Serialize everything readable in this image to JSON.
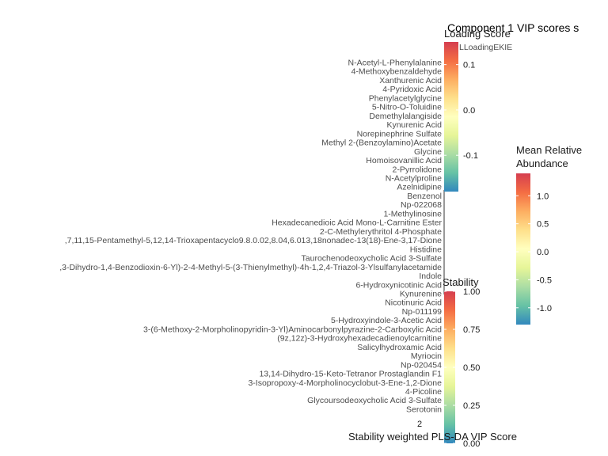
{
  "chart_data": {
    "type": "bar",
    "title": "Component 1 VIP scores s",
    "xlabel": "Stability weighted PLS-DA VIP Score",
    "x_tick_labels": [
      "2"
    ],
    "categories": [
      "N-Acetyl-L-Phenylalanine",
      "4-Methoxybenzaldehyde",
      "Xanthurenic Acid",
      "4-Pyridoxic Acid",
      "Phenylacetylglycine",
      "5-Nitro-O-Toluidine",
      "Demethylalangiside",
      "Kynurenic Acid",
      "Norepinephrine Sulfate",
      "Methyl 2-(Benzoylamino)Acetate",
      "Glycine",
      "Homoisovanillic Acid",
      "2-Pyrrolidone",
      "N-Acetylproline",
      "Azelnidipine",
      "Benzenol",
      "Np-022068",
      "1-Methylinosine",
      "Hexadecanedioic Acid Mono-L-Carnitine Ester",
      "2-C-Methylerythritol 4-Phosphate",
      ",7,11,15-Pentamethyl-5,12,14-Trioxapentacyclo9.8.0.02,8.04,6.013,18nonadec-13(18)-Ene-3,17-Dione",
      "Histidine",
      "Taurochenodeoxycholic Acid 3-Sulfate",
      ",3-Dihydro-1,4-Benzodioxin-6-Yl)-2-4-Methyl-5-(3-Thienylmethyl)-4h-1,2,4-Triazol-3-Ylsulfanylacetamide",
      "Indole",
      "6-Hydroxynicotinic Acid",
      "Kynurenine",
      "Nicotinuric Acid",
      "Np-011199",
      "5-Hydroxyindole-3-Acetic Acid",
      "3-(6-Methoxy-2-Morpholinopyridin-3-Yl)Aminocarbonylpyrazine-2-Carboxylic Acid",
      "(9z,12z)-3-Hydroxyhexadecadienoylcarnitine",
      "Salicylhydroxamic Acid",
      "Myriocin",
      "Np-020454",
      "13,14-Dihydro-15-Keto-Tetranor Prostaglandin F1",
      "3-Isopropoxy-4-Morpholinocyclobut-3-Ene-1,2-Dione",
      "4-Picoline",
      "Glycoursodeoxycholic Acid 3-Sulfate",
      "Serotonin"
    ],
    "legend_overlap_text": "LLoadingEKIE",
    "legends": [
      {
        "title": "Loading Score",
        "ticks": [
          "0.1",
          "0.0",
          "-0.1"
        ],
        "tick_values": [
          0.1,
          0.0,
          -0.1
        ],
        "range": [
          -0.18,
          0.15
        ]
      },
      {
        "title": "Mean Relative Abundance",
        "title_lines": [
          "Mean Relative",
          "Abundance"
        ],
        "ticks": [
          "1.0",
          "0.5",
          "0.0",
          "-0.5",
          "-1.0"
        ],
        "tick_values": [
          1.0,
          0.5,
          0.0,
          -0.5,
          -1.0
        ],
        "range": [
          -1.3,
          1.4
        ]
      },
      {
        "title": "Stability",
        "ticks": [
          "1.00",
          "0.75",
          "0.50",
          "0.25",
          "0.00"
        ],
        "tick_values": [
          1.0,
          0.75,
          0.5,
          0.25,
          0.0
        ],
        "range": [
          0.0,
          1.0
        ]
      }
    ],
    "colormap": [
      "#3288bd",
      "#66c2a5",
      "#abdda4",
      "#e6f598",
      "#ffffbf",
      "#fee08b",
      "#fdae61",
      "#f46d43",
      "#d53e4f"
    ]
  }
}
